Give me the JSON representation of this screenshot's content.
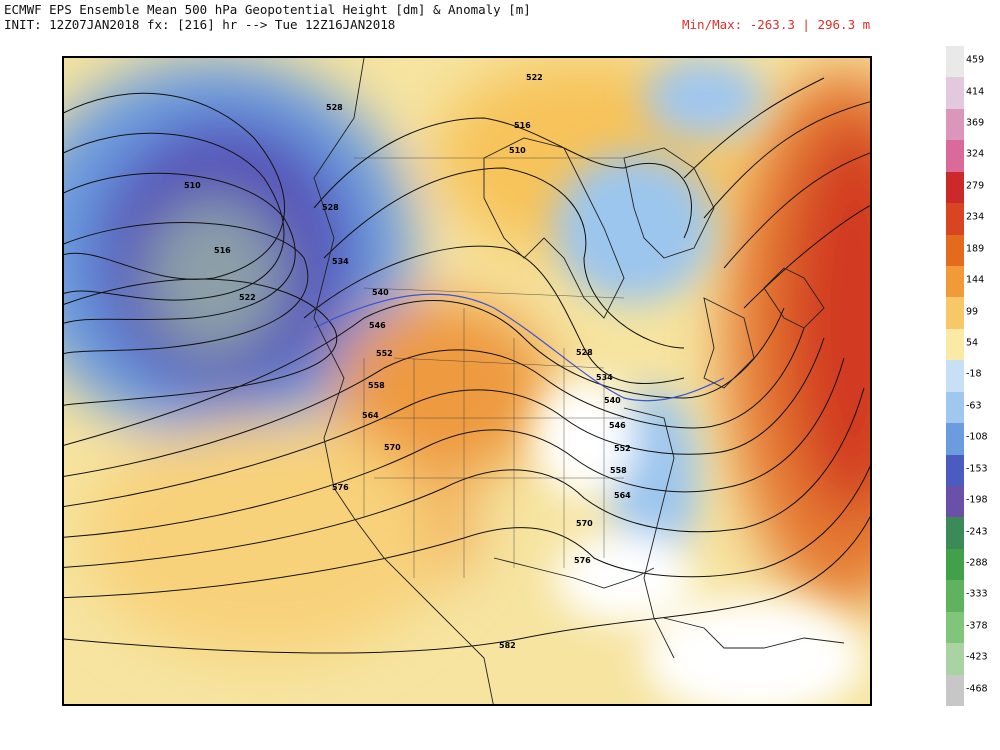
{
  "header": {
    "line1": "ECMWF EPS Ensemble Mean 500 hPa Geopotential Height [dm] & Anomaly [m]",
    "line2": "INIT: 12Z07JAN2018 fx: [216] hr --> Tue 12Z16JAN2018",
    "minmax": "Min/Max: -263.3 | 296.3 m"
  },
  "contour_labels": [
    "510",
    "516",
    "522",
    "528",
    "528",
    "534",
    "540",
    "546",
    "552",
    "558",
    "564",
    "570",
    "576",
    "510",
    "516",
    "522",
    "528",
    "534",
    "540",
    "546",
    "552",
    "558",
    "564",
    "570",
    "576",
    "582"
  ],
  "colorbar": {
    "labels": [
      "459",
      "414",
      "369",
      "324",
      "279",
      "234",
      "189",
      "144",
      "99",
      "54",
      "-18",
      "-63",
      "-108",
      "-153",
      "-198",
      "-243",
      "-288",
      "-333",
      "-378",
      "-423",
      "-468"
    ],
    "colors": [
      "#e9e9e9",
      "#e2c9de",
      "#dc96bb",
      "#d96a99",
      "#cc2a2a",
      "#d84520",
      "#e46a1e",
      "#f09a3a",
      "#f7c768",
      "#faeaa6",
      "#c8e0f5",
      "#a0c8ee",
      "#6b9ce0",
      "#4a5cc0",
      "#6a50a8",
      "#3c8a58",
      "#43a04a",
      "#5fb35e",
      "#7fc57a",
      "#a9d3a2",
      "#c7c7c7"
    ]
  }
}
